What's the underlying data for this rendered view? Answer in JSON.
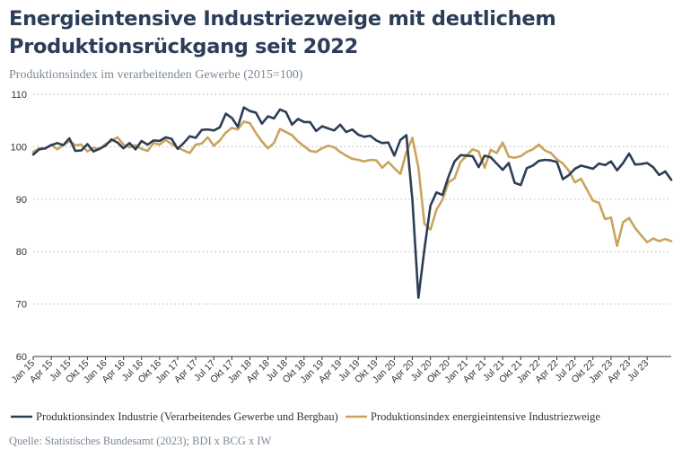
{
  "chart_data": {
    "type": "line",
    "title": "Energieintensive Industriezweige mit deutlichem Produktionsrückgang seit 2022",
    "subtitle": "Produktionsindex im verarbeitenden Gewerbe (2015=100)",
    "source": "Quelle: Statistisches Bundesamt (2023); BDI x BCG x IW",
    "ylim": [
      60,
      110
    ],
    "yticks": [
      60,
      70,
      80,
      90,
      100,
      110
    ],
    "grid": "horizontal-dotted",
    "legend_position": "bottom",
    "x_tick_labels": [
      "Jan 15",
      "Apr 15",
      "Jul 15",
      "Okt 15",
      "Jan 16",
      "Apr 16",
      "Jul 16",
      "Okt 16",
      "Jan 17",
      "Apr 17",
      "Jul 17",
      "Okt 17",
      "Jan 18",
      "Apr 18",
      "Jul 18",
      "Okt 18",
      "Jan 19",
      "Apr 19",
      "Jul 19",
      "Okt 19",
      "Jan 20",
      "Apr 20",
      "Jul 20",
      "Okt 20",
      "Jan 21",
      "Apr 21",
      "Jul 21",
      "Okt 21",
      "Jan 22",
      "Apr 22",
      "Jul 22",
      "Okt 22",
      "Jan 23",
      "Apr 23",
      "Jul 23"
    ],
    "series": [
      {
        "name": "Produktionsindex Industrie (Verarbeitendes Gewerbe und Bergbau)",
        "color": "#2c3e57",
        "values": [
          98.5,
          99.5,
          99.7,
          100.3,
          100.7,
          100.3,
          101.6,
          99.2,
          99.3,
          100.5,
          99.1,
          99.6,
          100.2,
          101.4,
          100.8,
          99.7,
          100.7,
          99.5,
          101.1,
          100.4,
          101.2,
          101.1,
          101.8,
          101.5,
          99.6,
          100.7,
          102.0,
          101.7,
          103.2,
          103.3,
          103.1,
          103.7,
          106.3,
          105.5,
          103.8,
          107.5,
          106.8,
          106.5,
          104.4,
          105.8,
          105.4,
          107.1,
          106.6,
          104.2,
          105.3,
          104.7,
          104.7,
          103.0,
          103.9,
          103.5,
          103.1,
          104.2,
          102.8,
          103.3,
          102.3,
          101.9,
          102.1,
          101.2,
          100.7,
          100.8,
          98.3,
          101.3,
          102.2,
          89.8,
          71.2,
          80.5,
          88.8,
          91.3,
          90.8,
          94.3,
          97.2,
          98.4,
          98.3,
          98.2,
          96.1,
          98.3,
          98.0,
          96.8,
          95.6,
          96.9,
          93.1,
          92.7,
          95.9,
          96.4,
          97.3,
          97.5,
          97.4,
          97.1,
          93.8,
          94.6,
          95.8,
          96.4,
          96.1,
          95.8,
          96.8,
          96.5,
          97.2,
          95.5,
          96.9,
          98.7,
          96.6,
          96.7,
          96.9,
          96.1,
          94.6,
          95.3,
          93.7
        ]
      },
      {
        "name": "Produktionsindex energieintensive Industriezweige",
        "color": "#c9a45c",
        "values": [
          99.0,
          99.7,
          99.6,
          100.4,
          99.5,
          100.3,
          101.1,
          100.3,
          100.4,
          99.1,
          99.8,
          99.5,
          100.5,
          101.1,
          101.8,
          100.4,
          99.9,
          100.3,
          99.6,
          99.2,
          100.7,
          100.4,
          101.3,
          100.5,
          99.8,
          99.3,
          98.8,
          100.4,
          100.6,
          101.8,
          100.2,
          101.2,
          102.7,
          103.6,
          103.3,
          104.8,
          104.5,
          102.6,
          101.0,
          99.7,
          100.7,
          103.4,
          102.8,
          102.2,
          101.0,
          100.1,
          99.2,
          99.0,
          99.7,
          100.2,
          99.9,
          99.0,
          98.3,
          97.7,
          97.5,
          97.2,
          97.5,
          97.4,
          96.0,
          97.1,
          95.9,
          94.8,
          99.0,
          101.7,
          96.0,
          85.3,
          84.2,
          88.0,
          89.9,
          93.2,
          94.0,
          97.1,
          98.3,
          99.5,
          99.1,
          96.0,
          99.4,
          98.8,
          100.8,
          98.1,
          97.9,
          98.2,
          99.0,
          99.5,
          100.4,
          99.3,
          98.8,
          97.6,
          96.8,
          95.4,
          93.2,
          93.9,
          91.8,
          89.7,
          89.3,
          86.2,
          86.5,
          81.1,
          85.6,
          86.4,
          84.5,
          83.1,
          81.8,
          82.5,
          82.0,
          82.4,
          82.0
        ]
      }
    ]
  }
}
